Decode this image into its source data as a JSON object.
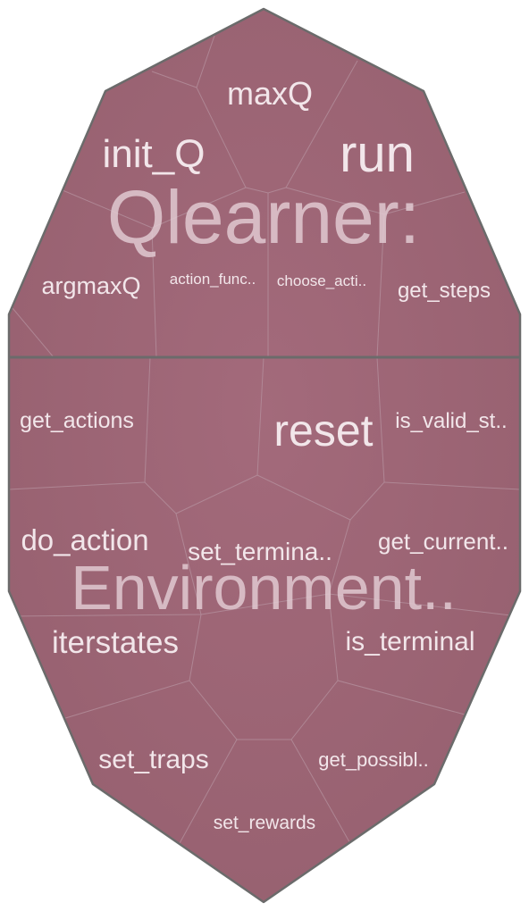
{
  "colors": {
    "cell_fill": "#9b6273",
    "cell_fill_light": "#a56b7c",
    "border": "#6b6b6b",
    "label": "#f2e6ea",
    "group_label": "#e3cdd4"
  },
  "groups": [
    {
      "label": "Qlearner:",
      "cells": [
        {
          "label": "maxQ"
        },
        {
          "label": "init_Q"
        },
        {
          "label": "run"
        },
        {
          "label": "argmaxQ"
        },
        {
          "label": "action_func.."
        },
        {
          "label": "choose_acti.."
        },
        {
          "label": "get_steps"
        }
      ]
    },
    {
      "label": "Environment..",
      "cells": [
        {
          "label": "get_actions"
        },
        {
          "label": "reset"
        },
        {
          "label": "is_valid_st.."
        },
        {
          "label": "do_action"
        },
        {
          "label": "set_termina.."
        },
        {
          "label": "get_current.."
        },
        {
          "label": "iterstates"
        },
        {
          "label": "is_terminal"
        },
        {
          "label": "set_traps"
        },
        {
          "label": "get_possibl.."
        },
        {
          "label": "set_rewards"
        }
      ]
    }
  ]
}
